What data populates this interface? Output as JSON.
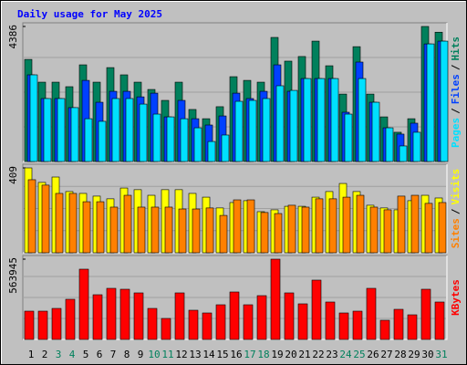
{
  "title": "Daily usage for May 2025",
  "legend_separator": "/",
  "categories": [
    "1",
    "2",
    "3",
    "4",
    "5",
    "6",
    "7",
    "8",
    "9",
    "10",
    "11",
    "12",
    "13",
    "14",
    "15",
    "16",
    "17",
    "18",
    "19",
    "20",
    "21",
    "22",
    "23",
    "24",
    "25",
    "26",
    "27",
    "28",
    "29",
    "30",
    "31"
  ],
  "category_colors": [
    "#000000",
    "#000000",
    "#00805c",
    "#00805c",
    "#000000",
    "#000000",
    "#000000",
    "#000000",
    "#000000",
    "#00805c",
    "#00805c",
    "#000000",
    "#000000",
    "#000000",
    "#000000",
    "#000000",
    "#00805c",
    "#00805c",
    "#000000",
    "#000000",
    "#000000",
    "#000000",
    "#000000",
    "#00805c",
    "#00805c",
    "#000000",
    "#000000",
    "#000000",
    "#000000",
    "#000000",
    "#00805c"
  ],
  "chart_data": [
    {
      "type": "bar",
      "ylim": [
        0,
        4386
      ],
      "yticks": [
        4386
      ],
      "series": [
        {
          "name": "Hits",
          "color": "#00805c",
          "values": [
            3316,
            2577,
            2577,
            2430,
            3140,
            2577,
            3050,
            2815,
            2577,
            2340,
            1985,
            2577,
            1690,
            1390,
            1780,
            2755,
            2635,
            2577,
            4030,
            3260,
            3410,
            3910,
            3110,
            2190,
            3730,
            2190,
            1450,
            950,
            1390,
            4386,
            4200
          ]
        },
        {
          "name": "Files",
          "color": "#0040ff",
          "values": [
            2815,
            2045,
            2045,
            1750,
            2635,
            1925,
            2280,
            2280,
            2100,
            2220,
            1450,
            1985,
            1390,
            1185,
            1480,
            2220,
            2045,
            2280,
            3140,
            2280,
            2695,
            2695,
            2695,
            1600,
            3230,
            1925,
            1095,
            890,
            1245,
            3820,
            3910
          ]
        },
        {
          "name": "Pages",
          "color": "#00e0ff",
          "values": [
            2815,
            2045,
            2045,
            1750,
            1390,
            1305,
            2045,
            2045,
            1865,
            1540,
            1450,
            1390,
            1095,
            650,
            860,
            1955,
            1985,
            2045,
            2460,
            2310,
            2695,
            2695,
            2695,
            1540,
            2695,
            1925,
            1095,
            505,
            950,
            3820,
            3910
          ]
        }
      ]
    },
    {
      "type": "bar",
      "ylim": [
        0,
        409
      ],
      "yticks": [
        409
      ],
      "series": [
        {
          "name": "Visits",
          "color": "#ffff00",
          "values": [
            409,
            339,
            365,
            295,
            286,
            273,
            260,
            312,
            304,
            277,
            304,
            304,
            286,
            268,
            216,
            242,
            251,
            198,
            207,
            224,
            224,
            268,
            295,
            334,
            295,
            229,
            216,
            207,
            251,
            277,
            264
          ]
        },
        {
          "name": "Sites",
          "color": "#ff8000",
          "values": [
            352,
            326,
            286,
            286,
            246,
            246,
            220,
            277,
            220,
            220,
            220,
            211,
            211,
            216,
            180,
            255,
            255,
            194,
            189,
            229,
            220,
            260,
            260,
            268,
            277,
            220,
            207,
            273,
            277,
            238,
            242
          ]
        }
      ]
    },
    {
      "type": "bar",
      "ylim": [
        0,
        563945
      ],
      "yticks": [
        563945
      ],
      "series": [
        {
          "name": "KBytes",
          "color": "#ff0000",
          "values": [
            198670,
            198670,
            217900,
            282000,
            493500,
            314000,
            358900,
            352500,
            326900,
            217900,
            147400,
            326900,
            205100,
            185900,
            243500,
            333300,
            243500,
            307600,
            563945,
            326900,
            250000,
            416600,
            262800,
            185900,
            198670,
            358900,
            134600,
            211500,
            173000,
            352500,
            262800
          ]
        }
      ]
    }
  ]
}
